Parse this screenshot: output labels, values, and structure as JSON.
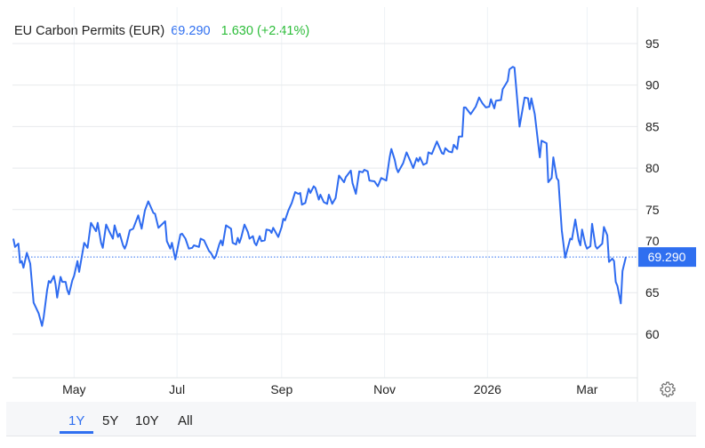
{
  "header": {
    "title": "EU Carbon Permits (EUR)",
    "price": "69.290",
    "change": "1.630 (+2.41%)"
  },
  "colors": {
    "line": "#2e6bf0",
    "price": "#2f6ff0",
    "change": "#2dbd3a"
  },
  "ranges": [
    {
      "label": "1Y",
      "active": true
    },
    {
      "label": "5Y"
    },
    {
      "label": "10Y"
    },
    {
      "label": "All"
    }
  ],
  "settings_icon": "gear-icon",
  "chart_data": {
    "type": "line",
    "title": "EU Carbon Permits (EUR)",
    "y_axis_side": "right",
    "ylim": [
      55,
      99
    ],
    "yticks": [
      60,
      65,
      70,
      75,
      80,
      85,
      90,
      95
    ],
    "xticks": [
      {
        "date": "2025-05-01",
        "label": "May"
      },
      {
        "date": "2025-07-01",
        "label": "Jul"
      },
      {
        "date": "2025-09-01",
        "label": "Sep"
      },
      {
        "date": "2025-11-01",
        "label": "Nov"
      },
      {
        "date": "2026-01-01",
        "label": "2026"
      },
      {
        "date": "2026-03-01",
        "label": "Mar"
      }
    ],
    "grid": true,
    "last_value_label": "69.290",
    "last_value": 69.29,
    "series": [
      {
        "points": [
          [
            "2025-03-26",
            71.5
          ],
          [
            "2025-03-27",
            70.5
          ],
          [
            "2025-03-29",
            70.9
          ],
          [
            "2025-03-30",
            68.6
          ],
          [
            "2025-03-31",
            68.8
          ],
          [
            "2025-04-01",
            68.0
          ],
          [
            "2025-04-03",
            69.8
          ],
          [
            "2025-04-05",
            68.5
          ],
          [
            "2025-04-07",
            63.8
          ],
          [
            "2025-04-10",
            62.5
          ],
          [
            "2025-04-12",
            61.0
          ],
          [
            "2025-04-13",
            62.1
          ],
          [
            "2025-04-15",
            65.3
          ],
          [
            "2025-04-16",
            66.4
          ],
          [
            "2025-04-17",
            66.2
          ],
          [
            "2025-04-19",
            67.0
          ],
          [
            "2025-04-20",
            66.0
          ],
          [
            "2025-04-21",
            64.4
          ],
          [
            "2025-04-23",
            66.9
          ],
          [
            "2025-04-24",
            66.3
          ],
          [
            "2025-04-26",
            66.3
          ],
          [
            "2025-04-27",
            65.3
          ],
          [
            "2025-04-28",
            64.8
          ],
          [
            "2025-04-30",
            66.5
          ],
          [
            "2025-05-01",
            67.0
          ],
          [
            "2025-05-03",
            68.8
          ],
          [
            "2025-05-04",
            67.5
          ],
          [
            "2025-05-07",
            71.0
          ],
          [
            "2025-05-09",
            70.4
          ],
          [
            "2025-05-11",
            73.4
          ],
          [
            "2025-05-14",
            72.4
          ],
          [
            "2025-05-15",
            73.4
          ],
          [
            "2025-05-17",
            71.0
          ],
          [
            "2025-05-18",
            70.4
          ],
          [
            "2025-05-20",
            73.2
          ],
          [
            "2025-05-22",
            72.3
          ],
          [
            "2025-05-24",
            71.5
          ],
          [
            "2025-05-25",
            73.1
          ],
          [
            "2025-05-27",
            71.7
          ],
          [
            "2025-05-28",
            72.1
          ],
          [
            "2025-05-30",
            70.7
          ],
          [
            "2025-05-31",
            70.3
          ],
          [
            "2025-06-01",
            70.8
          ],
          [
            "2025-06-03",
            72.5
          ],
          [
            "2025-06-05",
            72.7
          ],
          [
            "2025-06-08",
            74.3
          ],
          [
            "2025-06-10",
            72.7
          ],
          [
            "2025-06-12",
            74.9
          ],
          [
            "2025-06-14",
            76.0
          ],
          [
            "2025-06-17",
            74.6
          ],
          [
            "2025-06-18",
            74.5
          ],
          [
            "2025-06-20",
            72.8
          ],
          [
            "2025-06-24",
            73.6
          ],
          [
            "2025-06-25",
            71.2
          ],
          [
            "2025-06-27",
            70.3
          ],
          [
            "2025-06-28",
            71.0
          ],
          [
            "2025-06-30",
            69.0
          ],
          [
            "2025-07-03",
            72.0
          ],
          [
            "2025-07-04",
            72.1
          ],
          [
            "2025-07-06",
            71.5
          ],
          [
            "2025-07-08",
            70.3
          ],
          [
            "2025-07-10",
            70.4
          ],
          [
            "2025-07-11",
            70.7
          ],
          [
            "2025-07-14",
            70.5
          ],
          [
            "2025-07-15",
            71.5
          ],
          [
            "2025-07-17",
            71.3
          ],
          [
            "2025-07-20",
            70.0
          ],
          [
            "2025-07-21",
            69.8
          ],
          [
            "2025-07-23",
            69.1
          ],
          [
            "2025-07-24",
            69.4
          ],
          [
            "2025-07-26",
            70.8
          ],
          [
            "2025-07-27",
            71.3
          ],
          [
            "2025-07-28",
            70.7
          ],
          [
            "2025-07-30",
            73.1
          ],
          [
            "2025-08-02",
            72.7
          ],
          [
            "2025-08-03",
            71.0
          ],
          [
            "2025-08-05",
            70.8
          ],
          [
            "2025-08-06",
            71.6
          ],
          [
            "2025-08-07",
            71.0
          ],
          [
            "2025-08-08",
            71.6
          ],
          [
            "2025-08-10",
            73.2
          ],
          [
            "2025-08-12",
            72.3
          ],
          [
            "2025-08-13",
            71.5
          ],
          [
            "2025-08-15",
            71.8
          ],
          [
            "2025-08-16",
            71.0
          ],
          [
            "2025-08-17",
            70.7
          ],
          [
            "2025-08-19",
            71.8
          ],
          [
            "2025-08-20",
            71.2
          ],
          [
            "2025-08-22",
            71.3
          ],
          [
            "2025-08-23",
            72.6
          ],
          [
            "2025-08-25",
            72.5
          ],
          [
            "2025-08-26",
            72.2
          ],
          [
            "2025-08-27",
            72.8
          ],
          [
            "2025-08-30",
            71.7
          ],
          [
            "2025-09-01",
            72.9
          ],
          [
            "2025-09-02",
            73.9
          ],
          [
            "2025-09-03",
            73.7
          ],
          [
            "2025-09-05",
            74.9
          ],
          [
            "2025-09-07",
            75.8
          ],
          [
            "2025-09-09",
            77.1
          ],
          [
            "2025-09-11",
            76.9
          ],
          [
            "2025-09-12",
            77.0
          ],
          [
            "2025-09-13",
            75.6
          ],
          [
            "2025-09-15",
            75.8
          ],
          [
            "2025-09-17",
            77.5
          ],
          [
            "2025-09-18",
            77.0
          ],
          [
            "2025-09-20",
            77.8
          ],
          [
            "2025-09-21",
            77.6
          ],
          [
            "2025-09-23",
            76.2
          ],
          [
            "2025-09-24",
            76.8
          ],
          [
            "2025-09-26",
            75.9
          ],
          [
            "2025-09-28",
            75.7
          ],
          [
            "2025-09-29",
            76.8
          ],
          [
            "2025-10-01",
            75.7
          ],
          [
            "2025-10-03",
            76.4
          ],
          [
            "2025-10-05",
            79.1
          ],
          [
            "2025-10-08",
            78.3
          ],
          [
            "2025-10-09",
            78.9
          ],
          [
            "2025-10-12",
            79.7
          ],
          [
            "2025-10-13",
            78.2
          ],
          [
            "2025-10-15",
            76.9
          ],
          [
            "2025-10-17",
            79.6
          ],
          [
            "2025-10-19",
            79.5
          ],
          [
            "2025-10-20",
            79.8
          ],
          [
            "2025-10-22",
            79.6
          ],
          [
            "2025-10-23",
            78.5
          ],
          [
            "2025-10-26",
            78.4
          ],
          [
            "2025-10-28",
            77.8
          ],
          [
            "2025-10-30",
            78.8
          ],
          [
            "2025-11-02",
            78.5
          ],
          [
            "2025-11-04",
            81.3
          ],
          [
            "2025-11-05",
            82.3
          ],
          [
            "2025-11-07",
            81.0
          ],
          [
            "2025-11-08",
            80.0
          ],
          [
            "2025-11-09",
            79.5
          ],
          [
            "2025-11-12",
            80.6
          ],
          [
            "2025-11-14",
            81.9
          ],
          [
            "2025-11-16",
            81.0
          ],
          [
            "2025-11-18",
            80.0
          ],
          [
            "2025-11-20",
            81.2
          ],
          [
            "2025-11-21",
            80.8
          ],
          [
            "2025-11-22",
            81.3
          ],
          [
            "2025-11-24",
            80.4
          ],
          [
            "2025-11-26",
            80.6
          ],
          [
            "2025-11-27",
            81.9
          ],
          [
            "2025-11-29",
            81.7
          ],
          [
            "2025-11-30",
            82.2
          ],
          [
            "2025-12-02",
            83.2
          ],
          [
            "2025-12-05",
            81.8
          ],
          [
            "2025-12-06",
            81.7
          ],
          [
            "2025-12-07",
            82.4
          ],
          [
            "2025-12-09",
            82.0
          ],
          [
            "2025-12-11",
            81.9
          ],
          [
            "2025-12-12",
            82.8
          ],
          [
            "2025-12-14",
            82.3
          ],
          [
            "2025-12-15",
            83.8
          ],
          [
            "2025-12-17",
            83.8
          ],
          [
            "2025-12-18",
            87.3
          ],
          [
            "2025-12-19",
            87.3
          ],
          [
            "2025-12-22",
            86.5
          ],
          [
            "2025-12-25",
            87.4
          ],
          [
            "2025-12-27",
            88.5
          ],
          [
            "2025-12-29",
            87.8
          ],
          [
            "2025-12-31",
            87.3
          ],
          [
            "2026-01-02",
            87.4
          ],
          [
            "2026-01-03",
            88.3
          ],
          [
            "2026-01-05",
            87.2
          ],
          [
            "2026-01-06",
            88.1
          ],
          [
            "2026-01-09",
            88.2
          ],
          [
            "2026-01-10",
            89.5
          ],
          [
            "2026-01-13",
            90.5
          ],
          [
            "2026-01-14",
            91.9
          ],
          [
            "2026-01-16",
            92.2
          ],
          [
            "2026-01-17",
            92.1
          ],
          [
            "2026-01-20",
            85.0
          ],
          [
            "2026-01-23",
            88.5
          ],
          [
            "2026-01-25",
            88.4
          ],
          [
            "2026-01-26",
            87.1
          ],
          [
            "2026-01-27",
            88.4
          ],
          [
            "2026-01-29",
            86.5
          ],
          [
            "2026-02-01",
            81.3
          ],
          [
            "2026-02-02",
            83.3
          ],
          [
            "2026-02-05",
            83.0
          ],
          [
            "2026-02-06",
            78.3
          ],
          [
            "2026-02-08",
            78.8
          ],
          [
            "2026-02-09",
            81.3
          ],
          [
            "2026-02-11",
            78.8
          ],
          [
            "2026-02-12",
            78.5
          ],
          [
            "2026-02-14",
            72.5
          ],
          [
            "2026-02-16",
            69.2
          ],
          [
            "2026-02-19",
            71.5
          ],
          [
            "2026-02-20",
            71.4
          ],
          [
            "2026-02-22",
            73.8
          ],
          [
            "2026-02-24",
            71.3
          ],
          [
            "2026-02-25",
            70.7
          ],
          [
            "2026-02-26",
            72.6
          ],
          [
            "2026-02-28",
            70.8
          ],
          [
            "2026-03-01",
            70.3
          ],
          [
            "2026-03-03",
            70.6
          ],
          [
            "2026-03-04",
            73.3
          ],
          [
            "2026-03-06",
            70.6
          ],
          [
            "2026-03-07",
            70.3
          ],
          [
            "2026-03-10",
            70.9
          ],
          [
            "2026-03-11",
            72.9
          ],
          [
            "2026-03-13",
            71.9
          ],
          [
            "2026-03-14",
            68.7
          ],
          [
            "2026-03-16",
            69.1
          ],
          [
            "2026-03-17",
            68.8
          ],
          [
            "2026-03-18",
            66.3
          ],
          [
            "2026-03-19",
            65.8
          ],
          [
            "2026-03-21",
            63.7
          ],
          [
            "2026-03-22",
            67.6
          ],
          [
            "2026-03-24",
            69.29
          ]
        ]
      }
    ]
  }
}
